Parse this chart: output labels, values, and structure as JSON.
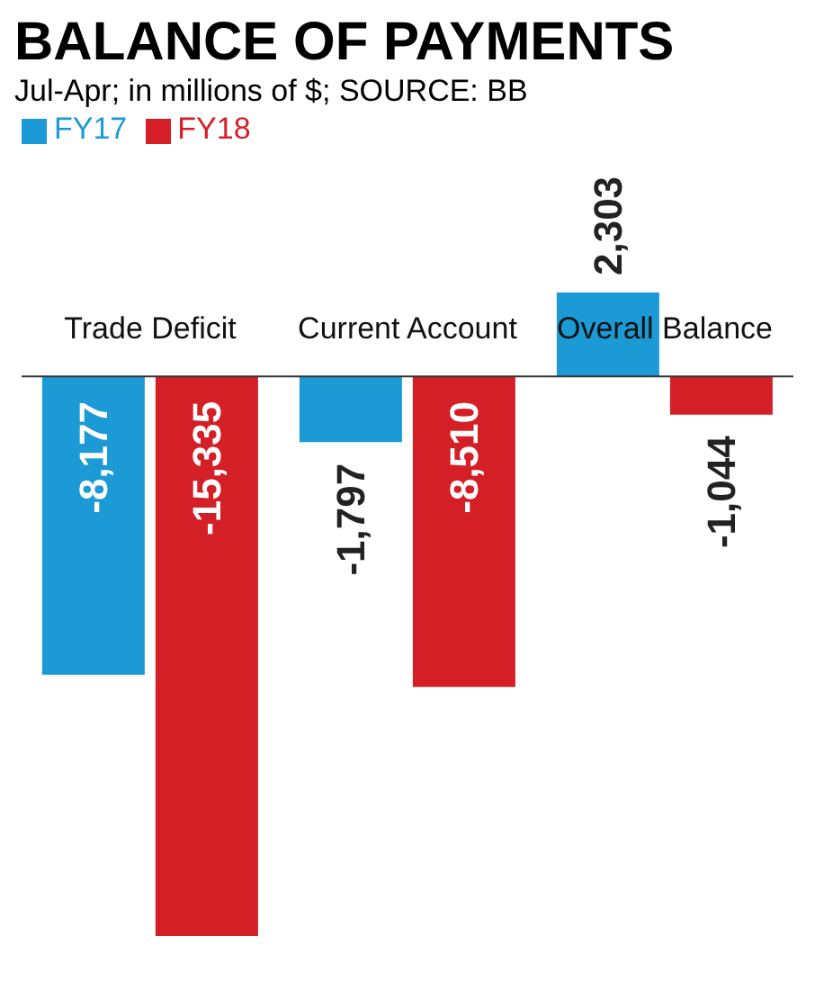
{
  "chart_data": {
    "type": "bar",
    "title": "BALANCE OF PAYMENTS",
    "subtitle": "Jul-Apr; in millions of $; SOURCE: BB",
    "categories": [
      "Trade Deficit",
      "Current Account",
      "Overall Balance"
    ],
    "series": [
      {
        "name": "FY17",
        "color": "#1b9ad6",
        "values": [
          -8177,
          -1797,
          2303
        ],
        "value_labels": [
          "-8,177",
          "-1,797",
          "2,303"
        ]
      },
      {
        "name": "FY18",
        "color": "#d41f26",
        "values": [
          -15335,
          -8510,
          -1044
        ],
        "value_labels": [
          "-15,335",
          "-8,510",
          "-1,044"
        ]
      }
    ],
    "legend": "top left"
  }
}
